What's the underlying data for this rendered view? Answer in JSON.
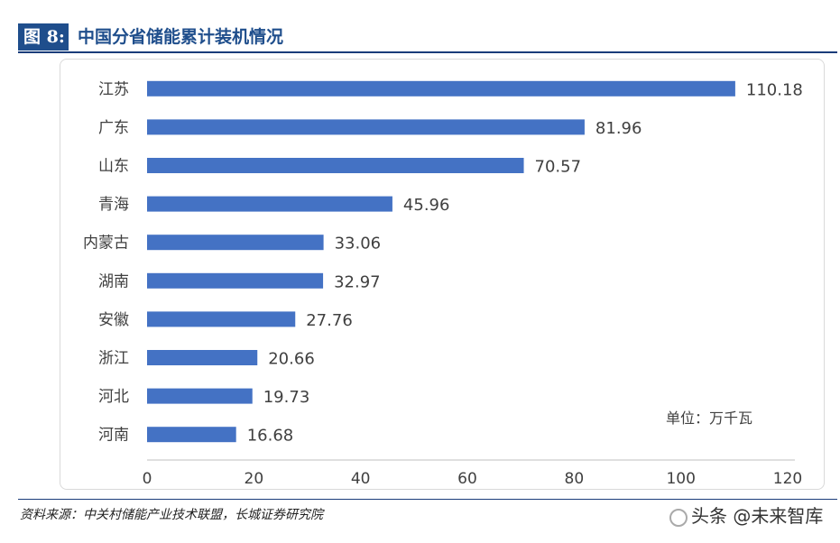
{
  "figure": {
    "label": "图 8:",
    "title": "中国分省储能累计装机情况"
  },
  "chart_data": {
    "type": "bar",
    "orientation": "horizontal",
    "categories": [
      "江苏",
      "广东",
      "山东",
      "青海",
      "内蒙古",
      "湖南",
      "安徽",
      "浙江",
      "河北",
      "河南"
    ],
    "values": [
      110.18,
      81.96,
      70.57,
      45.96,
      33.06,
      32.97,
      27.76,
      20.66,
      19.73,
      16.68
    ],
    "value_labels": [
      "110.18",
      "81.96",
      "70.57",
      "45.96",
      "33.06",
      "32.97",
      "27.76",
      "20.66",
      "19.73",
      "16.68"
    ],
    "xlim": [
      0,
      120
    ],
    "xticks": [
      0,
      20,
      40,
      60,
      80,
      100,
      120
    ],
    "unit_note": "单位：万千瓦",
    "grid": false,
    "bar_color": "#4472c4"
  },
  "footer": {
    "source": "资料来源：中关村储能产业技术联盟，长城证券研究院",
    "watermark": "头条 @未来智库"
  }
}
